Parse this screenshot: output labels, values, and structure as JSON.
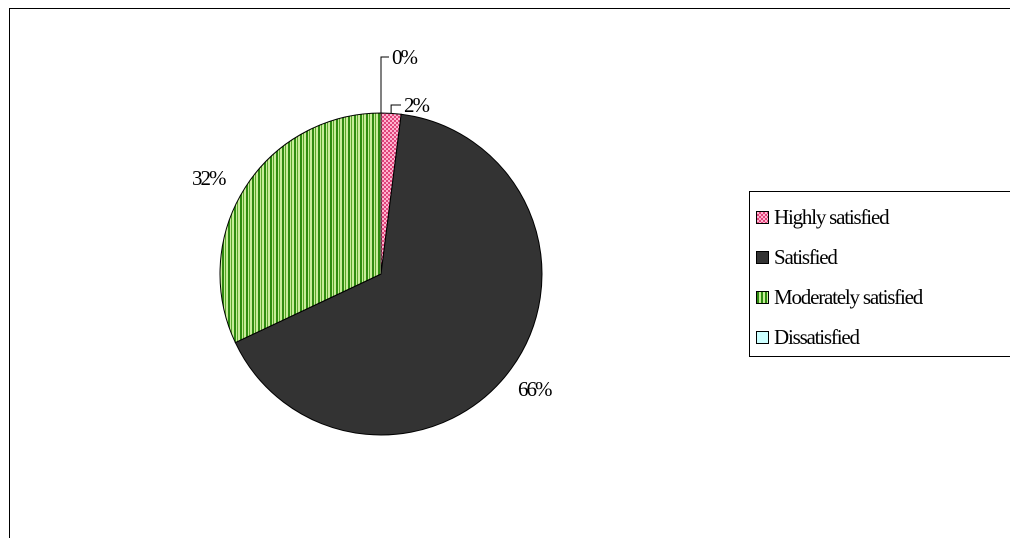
{
  "chart_data": {
    "type": "pie",
    "categories": [
      "Highly satisfied",
      "Satisfied",
      "Moderately satisfied",
      "Dissatisfied"
    ],
    "values": [
      2,
      66,
      32,
      0
    ],
    "data_labels": [
      "2%",
      "66%",
      "32%",
      "0%"
    ],
    "colors": [
      "#e0457b",
      "#333333",
      "#7dc242",
      "#ccffff"
    ],
    "legend_position": "right",
    "title": ""
  }
}
